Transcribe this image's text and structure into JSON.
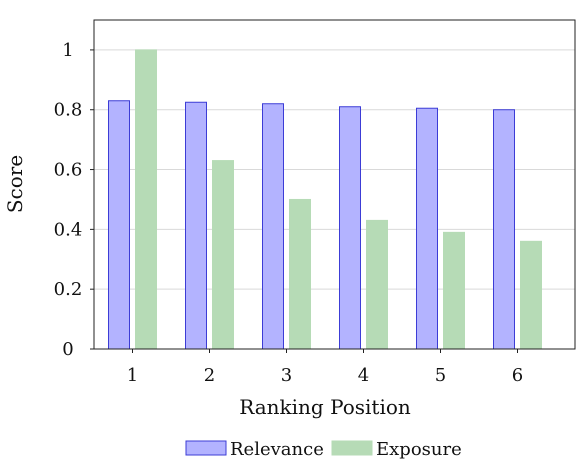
{
  "chart_data": {
    "type": "bar",
    "categories": [
      "1",
      "2",
      "3",
      "4",
      "5",
      "6"
    ],
    "series": [
      {
        "name": "Relevance",
        "values": [
          0.83,
          0.825,
          0.82,
          0.81,
          0.805,
          0.8
        ],
        "fill": "#b3b3ff",
        "stroke": "#3c3cd6"
      },
      {
        "name": "Exposure",
        "values": [
          1.0,
          0.63,
          0.5,
          0.43,
          0.39,
          0.36
        ],
        "fill": "#b6dbb6",
        "stroke": "#b6dbb6"
      }
    ],
    "xlabel": "Ranking Position",
    "ylabel": "Score",
    "ylim": [
      0,
      1.1
    ],
    "yticks": [
      0,
      0.2,
      0.4,
      0.6,
      0.8,
      1
    ],
    "ytick_labels": [
      "0",
      "0.2",
      "0.4",
      "0.6",
      "0.8",
      "1"
    ],
    "grid": true,
    "grid_color": "#d9d9d9",
    "legend_position": "bottom-center"
  }
}
